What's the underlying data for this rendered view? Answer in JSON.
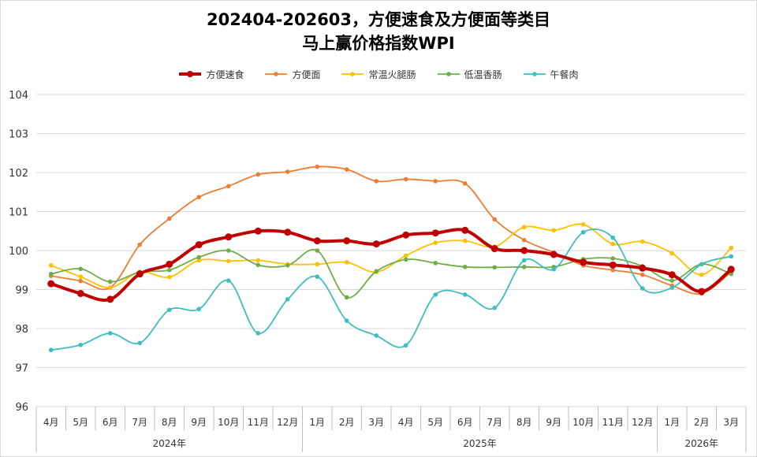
{
  "chart_data": {
    "type": "line",
    "title_line1": "202404-202603，方便速食及方便面等类目",
    "title_line2": "马上赢价格指数WPI",
    "ylim": [
      96,
      104
    ],
    "yticks": [
      96,
      97,
      98,
      99,
      100,
      101,
      102,
      103,
      104
    ],
    "grid": true,
    "legend": "top",
    "categories": [
      "4月",
      "5月",
      "6月",
      "7月",
      "8月",
      "9月",
      "10月",
      "11月",
      "12月",
      "1月",
      "2月",
      "3月",
      "4月",
      "5月",
      "6月",
      "7月",
      "8月",
      "9月",
      "10月",
      "11月",
      "12月",
      "1月",
      "2月",
      "3月"
    ],
    "year_groups": [
      {
        "label": "2024年",
        "count": 9
      },
      {
        "label": "2025年",
        "count": 12
      },
      {
        "label": "2026年",
        "count": 3
      }
    ],
    "series": [
      {
        "name": "方便速食",
        "color": "#C00000",
        "emphasis": true,
        "values": [
          99.15,
          98.9,
          98.75,
          99.4,
          99.65,
          100.15,
          100.35,
          100.5,
          100.47,
          100.25,
          100.25,
          100.17,
          100.4,
          100.45,
          100.52,
          100.05,
          100.0,
          99.9,
          99.7,
          99.63,
          99.55,
          99.38,
          98.95,
          99.52
        ]
      },
      {
        "name": "方便面",
        "color": "#ED7D31",
        "values": [
          99.35,
          99.22,
          99.05,
          100.15,
          100.82,
          101.37,
          101.65,
          101.95,
          102.02,
          102.15,
          102.08,
          101.78,
          101.83,
          101.78,
          101.72,
          100.8,
          100.27,
          99.95,
          99.62,
          99.5,
          99.38,
          99.1,
          98.9,
          99.45
        ]
      },
      {
        "name": "常温火腿肠",
        "color": "#FFC000",
        "values": [
          99.62,
          99.33,
          99.05,
          99.45,
          99.32,
          99.75,
          99.73,
          99.75,
          99.65,
          99.65,
          99.7,
          99.45,
          99.87,
          100.2,
          100.25,
          100.1,
          100.6,
          100.52,
          100.67,
          100.17,
          100.23,
          99.93,
          99.38,
          100.07
        ]
      },
      {
        "name": "低温香肠",
        "color": "#70AD47",
        "values": [
          99.4,
          99.53,
          99.2,
          99.45,
          99.5,
          99.83,
          100.0,
          99.63,
          99.62,
          100.0,
          98.8,
          99.47,
          99.77,
          99.68,
          99.58,
          99.57,
          99.58,
          99.58,
          99.78,
          99.8,
          99.6,
          99.23,
          99.65,
          99.4
        ]
      },
      {
        "name": "午餐肉",
        "color": "#3CBFBE",
        "values": [
          97.45,
          97.58,
          97.88,
          97.63,
          98.48,
          98.5,
          99.23,
          97.88,
          98.75,
          99.33,
          98.2,
          97.82,
          97.57,
          98.87,
          98.87,
          98.53,
          99.75,
          99.52,
          100.47,
          100.33,
          99.03,
          99.05,
          99.65,
          99.85
        ]
      }
    ]
  }
}
